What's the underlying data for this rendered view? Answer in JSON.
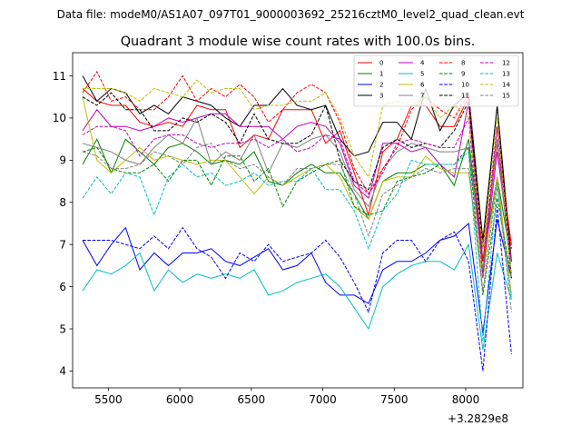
{
  "suptitle": "Data file: modeM0/AS1A07_097T01_9000003692_25216cztM0_level2_quad_clean.evt",
  "chart_data": {
    "type": "line",
    "title": "Quadrant 3 module wise count rates with 100.0s bins.",
    "xlabel": "",
    "ylabel": "",
    "x_offset_label": "+3.2829e8",
    "xlim": [
      5250,
      8400
    ],
    "ylim": [
      3.6,
      11.55
    ],
    "xticks": [
      5500,
      6000,
      6500,
      7000,
      7500,
      8000
    ],
    "yticks": [
      4,
      5,
      6,
      7,
      8,
      9,
      10,
      11
    ],
    "legend_position": "top-right",
    "x": [
      5320,
      5420,
      5520,
      5620,
      5720,
      5820,
      5920,
      6020,
      6120,
      6220,
      6320,
      6420,
      6520,
      6620,
      6720,
      6820,
      6920,
      7020,
      7120,
      7220,
      7320,
      7420,
      7520,
      7620,
      7720,
      7820,
      7920,
      8020,
      8120,
      8220,
      8320
    ],
    "series": [
      {
        "name": "0",
        "color": "#ff0000",
        "style": "solid",
        "values": [
          10.7,
          10.4,
          10.3,
          10.3,
          9.9,
          9.8,
          9.9,
          9.8,
          10.3,
          10.2,
          10.2,
          9.3,
          9.6,
          9.5,
          10.2,
          10.2,
          10.2,
          9.4,
          9.7,
          8.7,
          7.7,
          9.2,
          9.5,
          10.3,
          10.3,
          9.8,
          9.8,
          10.5,
          6.6,
          9.4,
          7.0
        ]
      },
      {
        "name": "1",
        "color": "#008000",
        "style": "solid",
        "values": [
          8.9,
          9.5,
          8.7,
          9.5,
          9.2,
          8.9,
          9.3,
          9.4,
          9.2,
          8.9,
          9.0,
          8.9,
          9.2,
          8.5,
          8.4,
          8.7,
          8.9,
          8.7,
          8.7,
          8.2,
          7.6,
          8.5,
          8.7,
          8.7,
          8.9,
          8.9,
          8.4,
          9.5,
          6.6,
          8.6,
          6.6
        ]
      },
      {
        "name": "2",
        "color": "#0000ff",
        "style": "solid",
        "values": [
          7.1,
          6.5,
          7.0,
          7.4,
          6.4,
          6.8,
          6.5,
          6.8,
          6.8,
          6.9,
          6.6,
          6.5,
          6.7,
          6.9,
          6.4,
          6.5,
          6.8,
          6.1,
          5.8,
          5.8,
          5.6,
          6.4,
          6.6,
          6.6,
          6.8,
          7.1,
          7.2,
          7.5,
          4.9,
          7.6,
          6.2
        ]
      },
      {
        "name": "3",
        "color": "#000000",
        "style": "solid",
        "values": [
          11.0,
          10.4,
          10.7,
          10.6,
          10.1,
          10.3,
          10.1,
          10.5,
          10.4,
          10.3,
          10.0,
          9.8,
          10.3,
          10.3,
          10.7,
          10.3,
          10.2,
          10.3,
          9.5,
          9.1,
          9.2,
          9.9,
          9.9,
          9.5,
          10.7,
          9.7,
          10.3,
          10.6,
          7.1,
          10.3,
          6.6
        ]
      },
      {
        "name": "4",
        "color": "#bf00bf",
        "style": "solid",
        "values": [
          9.7,
          10.2,
          9.8,
          9.8,
          9.7,
          9.8,
          10.0,
          9.9,
          10.0,
          10.1,
          10.1,
          9.8,
          9.8,
          9.8,
          9.5,
          9.8,
          9.9,
          9.8,
          9.4,
          8.4,
          8.1,
          9.4,
          9.4,
          9.2,
          9.3,
          8.9,
          8.6,
          10.4,
          6.3,
          9.2,
          6.6
        ]
      },
      {
        "name": "5",
        "color": "#00bfbf",
        "style": "solid",
        "values": [
          5.9,
          6.4,
          6.3,
          6.5,
          6.8,
          5.9,
          6.4,
          6.1,
          6.3,
          6.2,
          6.3,
          6.2,
          6.4,
          5.8,
          5.9,
          6.1,
          6.2,
          6.3,
          6.0,
          5.5,
          5.0,
          6.0,
          6.3,
          6.5,
          6.6,
          6.6,
          6.4,
          7.0,
          4.5,
          6.8,
          5.7
        ]
      },
      {
        "name": "6",
        "color": "#bfbf00",
        "style": "solid",
        "values": [
          10.5,
          9.0,
          8.7,
          9.0,
          9.3,
          9.0,
          9.1,
          9.0,
          8.9,
          9.0,
          9.0,
          8.6,
          8.2,
          8.6,
          8.4,
          8.6,
          8.8,
          8.9,
          8.6,
          7.9,
          7.6,
          8.5,
          8.6,
          8.6,
          9.1,
          8.8,
          8.7,
          8.7,
          6.2,
          8.6,
          5.8
        ]
      },
      {
        "name": "7",
        "color": "#808080",
        "style": "solid",
        "values": [
          9.4,
          9.3,
          9.2,
          9.0,
          8.9,
          9.3,
          9.6,
          9.4,
          10.0,
          8.9,
          9.2,
          9.0,
          9.6,
          8.7,
          9.4,
          9.3,
          9.5,
          9.6,
          9.2,
          8.3,
          7.9,
          8.8,
          9.2,
          9.4,
          9.3,
          9.2,
          9.2,
          9.3,
          6.4,
          9.5,
          6.2
        ]
      },
      {
        "name": "8",
        "color": "#ff0000",
        "style": "dashed",
        "values": [
          10.6,
          11.1,
          10.4,
          10.5,
          10.2,
          10.2,
          10.5,
          11.0,
          10.4,
          10.7,
          10.5,
          10.8,
          10.5,
          9.9,
          10.2,
          10.6,
          10.8,
          10.6,
          9.9,
          8.8,
          8.2,
          8.8,
          9.3,
          10.2,
          10.5,
          10.2,
          10.0,
          10.6,
          6.6,
          9.8,
          6.9
        ]
      },
      {
        "name": "9",
        "color": "#008000",
        "style": "dashed",
        "values": [
          9.2,
          9.3,
          8.8,
          8.7,
          8.7,
          8.9,
          8.5,
          9.0,
          9.0,
          8.4,
          9.1,
          9.1,
          8.5,
          8.8,
          7.9,
          8.5,
          8.7,
          8.9,
          9.0,
          7.9,
          7.7,
          7.8,
          8.5,
          8.6,
          8.7,
          8.9,
          8.9,
          9.3,
          5.8,
          8.1,
          6.2
        ]
      },
      {
        "name": "10",
        "color": "#0000ff",
        "style": "dashed",
        "values": [
          7.1,
          7.1,
          7.1,
          7.0,
          6.9,
          7.2,
          6.9,
          7.4,
          6.9,
          6.7,
          6.2,
          6.8,
          6.6,
          7.0,
          6.6,
          6.7,
          6.8,
          7.1,
          6.7,
          6.1,
          5.4,
          6.8,
          7.1,
          7.1,
          6.6,
          7.1,
          7.3,
          6.6,
          4.0,
          7.9,
          4.4
        ]
      },
      {
        "name": "11",
        "color": "#000000",
        "style": "dashed",
        "values": [
          10.5,
          10.3,
          10.6,
          10.2,
          10.2,
          9.7,
          9.7,
          10.0,
          9.9,
          10.1,
          9.9,
          9.4,
          10.1,
          9.5,
          9.4,
          9.4,
          9.6,
          10.3,
          9.0,
          8.5,
          8.3,
          9.3,
          9.5,
          9.3,
          9.4,
          9.3,
          9.7,
          10.4,
          6.9,
          10.3,
          6.2
        ]
      },
      {
        "name": "12",
        "color": "#bf00bf",
        "style": "dashed",
        "values": [
          9.6,
          9.8,
          9.8,
          9.7,
          9.1,
          9.5,
          9.6,
          9.6,
          9.4,
          9.3,
          9.4,
          9.4,
          9.5,
          9.3,
          9.5,
          9.2,
          9.3,
          9.6,
          9.5,
          8.5,
          8.2,
          8.7,
          9.4,
          9.5,
          9.4,
          9.3,
          9.3,
          10.0,
          6.2,
          9.8,
          6.2
        ]
      },
      {
        "name": "13",
        "color": "#00bfbf",
        "style": "dashed",
        "values": [
          8.1,
          8.6,
          8.2,
          8.7,
          8.6,
          7.7,
          8.6,
          8.9,
          8.6,
          8.7,
          8.4,
          8.5,
          8.7,
          8.4,
          8.5,
          8.5,
          8.8,
          8.3,
          8.3,
          7.8,
          6.9,
          7.8,
          8.2,
          9.0,
          8.9,
          8.9,
          8.9,
          9.2,
          4.7,
          8.4,
          5.7
        ]
      },
      {
        "name": "14",
        "color": "#bfbf00",
        "style": "dashed",
        "values": [
          10.7,
          10.7,
          10.7,
          10.6,
          10.4,
          10.7,
          10.6,
          10.5,
          10.9,
          10.6,
          10.7,
          10.7,
          10.2,
          10.3,
          10.3,
          10.4,
          10.4,
          10.6,
          10.0,
          9.1,
          8.6,
          10.3,
          10.4,
          10.3,
          10.5,
          10.0,
          10.3,
          10.0,
          6.9,
          10.0,
          6.2
        ]
      },
      {
        "name": "15",
        "color": "#808080",
        "style": "dashed",
        "values": [
          9.2,
          9.1,
          8.8,
          8.8,
          8.9,
          9.2,
          9.1,
          8.9,
          9.3,
          9.4,
          9.0,
          8.8,
          8.9,
          8.6,
          8.4,
          8.8,
          8.8,
          8.9,
          8.9,
          8.2,
          7.2,
          8.2,
          8.4,
          8.6,
          8.8,
          8.7,
          8.8,
          8.8,
          5.9,
          8.5,
          5.4
        ]
      }
    ]
  }
}
